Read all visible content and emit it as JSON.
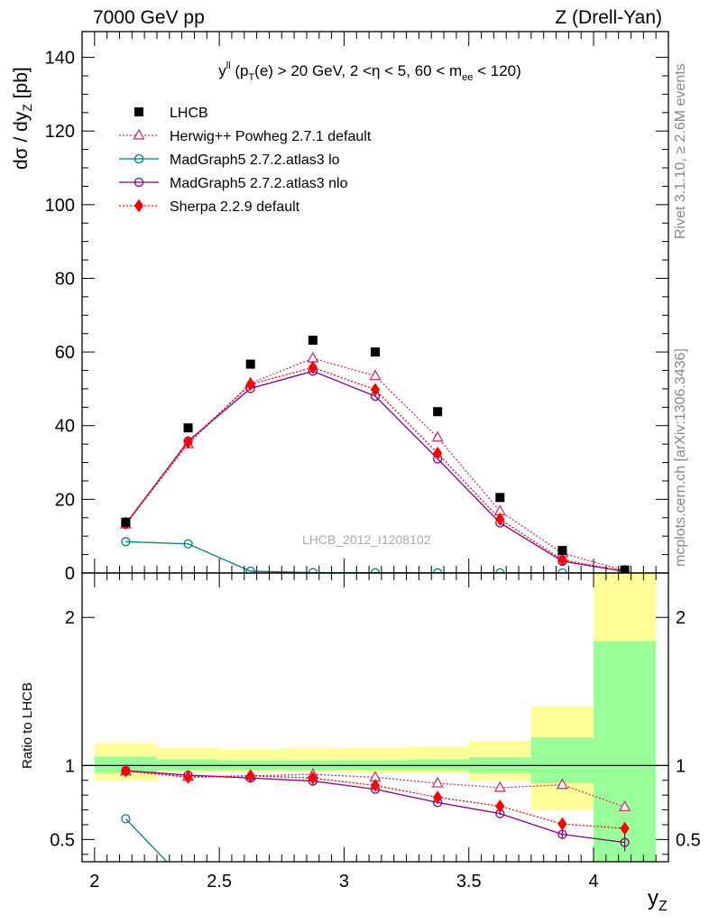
{
  "header": {
    "left": "7000 GeV pp",
    "right": "Z (Drell-Yan)"
  },
  "side_labels": {
    "rivet": "Rivet 3.1.10, ≥ 2.6M events",
    "mcplots": "mcplots.cern.ch [arXiv:1306.3436]"
  },
  "watermark": "LHCB_2012_I1208102",
  "chart_data": {
    "type": "line",
    "title": "y^{ll} (p_T(e) > 20 GeV, 2 < η < 5, 60 < m_ee < 120)",
    "xlabel": "y_Z",
    "ylabel": "dσ / dy_Z [pb]",
    "ratio_ylabel": "Ratio to LHCB",
    "xlim": [
      1.95,
      4.3
    ],
    "ylim": [
      0,
      147
    ],
    "ratio_ylim": [
      0.35,
      2.3
    ],
    "x_ticks": [
      "2",
      "2.5",
      "3",
      "3.5",
      "4"
    ],
    "y_ticks": [
      "0",
      "20",
      "40",
      "60",
      "80",
      "100",
      "120",
      "140"
    ],
    "ratio_ticks": [
      "0.5",
      "1",
      "2"
    ],
    "x": [
      2.125,
      2.375,
      2.625,
      2.875,
      3.125,
      3.375,
      3.625,
      3.875,
      4.125
    ],
    "data": {
      "name": "LHCB",
      "values": [
        13.8,
        39.4,
        56.7,
        63.2,
        60.0,
        43.8,
        20.5,
        6.1,
        0.8
      ],
      "bin_edges": [
        2.0,
        2.25,
        2.5,
        2.75,
        3.0,
        3.25,
        3.5,
        3.75,
        4.0,
        4.25
      ],
      "ratio_band_inner": [
        [
          0.95,
          1.06
        ],
        [
          0.97,
          1.04
        ],
        [
          0.97,
          1.035
        ],
        [
          0.97,
          1.035
        ],
        [
          0.97,
          1.035
        ],
        [
          0.97,
          1.04
        ],
        [
          0.95,
          1.055
        ],
        [
          0.88,
          1.19
        ],
        [
          0.0,
          1.84
        ]
      ],
      "ratio_band_outer": [
        [
          0.9,
          1.15
        ],
        [
          0.96,
          1.12
        ],
        [
          0.96,
          1.11
        ],
        [
          0.96,
          1.115
        ],
        [
          0.95,
          1.12
        ],
        [
          0.95,
          1.125
        ],
        [
          0.9,
          1.165
        ],
        [
          0.7,
          1.4
        ],
        [
          0.0,
          2.3
        ]
      ]
    },
    "series": [
      {
        "name": "Herwig++ Powheg 2.7.1 default",
        "color": "#cc3366",
        "marker": "triangle-open",
        "dash": "dotted",
        "values": [
          13.2,
          35.0,
          51.5,
          58.3,
          53.5,
          36.8,
          16.8,
          5.4,
          0.6
        ],
        "ratio": [
          0.96,
          0.925,
          0.93,
          0.94,
          0.92,
          0.88,
          0.85,
          0.87,
          0.72
        ]
      },
      {
        "name": "MadGraph5 2.7.2.atlas3 lo",
        "color": "#008080",
        "marker": "circle-open",
        "dash": "solid",
        "values": [
          8.5,
          7.9,
          0.5,
          0.1,
          0.05,
          0.02,
          0.01,
          0.0,
          0.0
        ],
        "ratio": [
          0.64,
          0.2,
          0.01,
          0.0,
          0.0,
          0.0,
          0.0,
          0.0,
          0.0
        ]
      },
      {
        "name": "MadGraph5 2.7.2.atlas3 nlo",
        "color": "#800080",
        "marker": "circle-open",
        "dash": "solid",
        "values": [
          13.3,
          35.8,
          50.1,
          54.8,
          48.0,
          31.0,
          13.6,
          3.2,
          0.4
        ],
        "ratio": [
          0.965,
          0.935,
          0.915,
          0.895,
          0.84,
          0.75,
          0.675,
          0.535,
          0.48
        ],
        "ratio_err": [
          0.005,
          0.005,
          0.005,
          0.005,
          0.005,
          0.008,
          0.01,
          0.025,
          0.06
        ]
      },
      {
        "name": "Sherpa 2.2.9 default",
        "color": "#ff0000",
        "marker": "diamond-filled",
        "dash": "dotted",
        "values": [
          13.5,
          35.5,
          51.2,
          55.8,
          49.8,
          32.5,
          14.6,
          3.6,
          0.45
        ],
        "ratio": [
          0.965,
          0.92,
          0.93,
          0.915,
          0.865,
          0.785,
          0.725,
          0.605,
          0.575
        ],
        "ratio_err": [
          0.005,
          0.005,
          0.005,
          0.005,
          0.005,
          0.008,
          0.01,
          0.015,
          0.04
        ]
      }
    ]
  }
}
